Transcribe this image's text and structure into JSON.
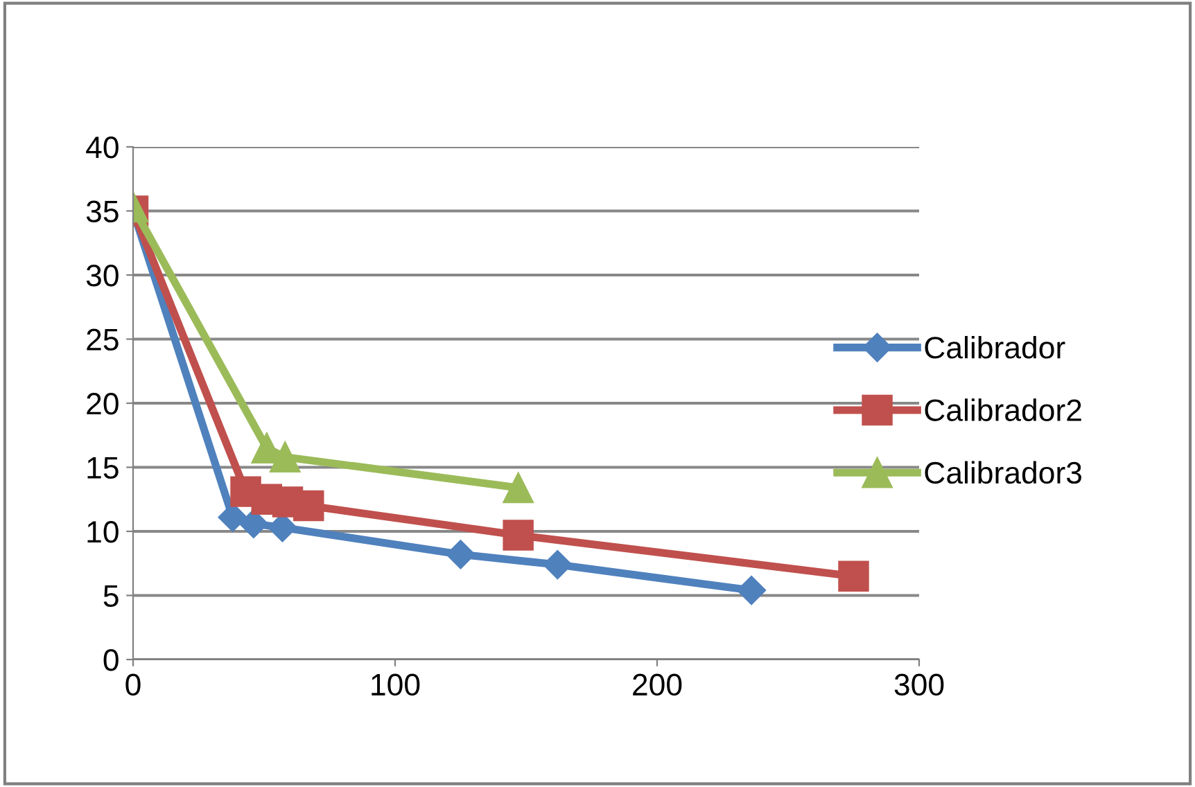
{
  "chart_data": {
    "type": "line",
    "legend": "right",
    "grid": "y",
    "xlim": [
      0,
      300
    ],
    "xticks": [
      0,
      100,
      200,
      300
    ],
    "ylim": [
      0,
      40
    ],
    "yticks": [
      0,
      5,
      10,
      15,
      20,
      25,
      30,
      35,
      40
    ],
    "series": [
      {
        "name": "Calibrador",
        "color": "#4f81bd",
        "marker": "diamond",
        "x": [
          0,
          38,
          46,
          57,
          125,
          162,
          236
        ],
        "values": [
          35,
          11.1,
          10.6,
          10.3,
          8.2,
          7.4,
          5.4
        ]
      },
      {
        "name": "Calibrador2",
        "color": "#c0504d",
        "marker": "square",
        "x": [
          0,
          43,
          51,
          59,
          67,
          147,
          275
        ],
        "values": [
          35,
          13.1,
          12.5,
          12.3,
          12.0,
          9.7,
          6.5
        ]
      },
      {
        "name": "Calibrador3",
        "color": "#9bbb59",
        "marker": "triangle",
        "x": [
          0,
          51,
          58,
          147
        ],
        "values": [
          35.3,
          16.5,
          15.8,
          13.4
        ]
      }
    ]
  }
}
